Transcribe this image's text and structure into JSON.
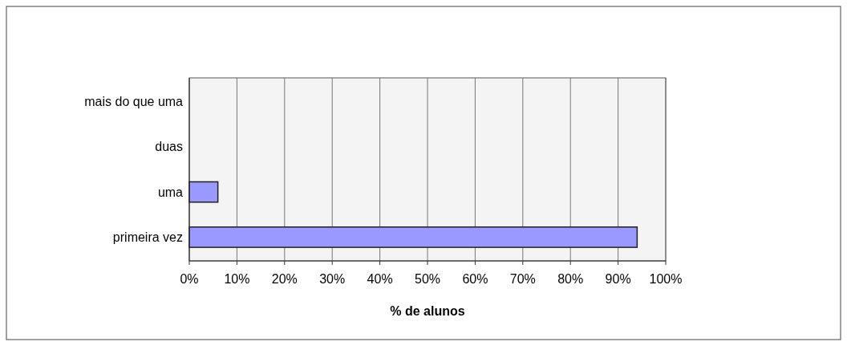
{
  "chart_data": {
    "type": "bar",
    "orientation": "horizontal",
    "xlabel": "% de alunos",
    "categories": [
      "mais do que uma",
      "duas",
      "uma",
      "primeira vez"
    ],
    "values": [
      0,
      0,
      6,
      94
    ],
    "color": "#9999ff",
    "xlim": [
      0,
      100
    ],
    "xticks": [
      {
        "value": 0,
        "label": "0%"
      },
      {
        "value": 10,
        "label": "10%"
      },
      {
        "value": 20,
        "label": "20%"
      },
      {
        "value": 30,
        "label": "30%"
      },
      {
        "value": 40,
        "label": "40%"
      },
      {
        "value": 50,
        "label": "50%"
      },
      {
        "value": 60,
        "label": "60%"
      },
      {
        "value": 70,
        "label": "70%"
      },
      {
        "value": 80,
        "label": "80%"
      },
      {
        "value": 90,
        "label": "90%"
      },
      {
        "value": 100,
        "label": "100%"
      }
    ],
    "grid": "x"
  }
}
